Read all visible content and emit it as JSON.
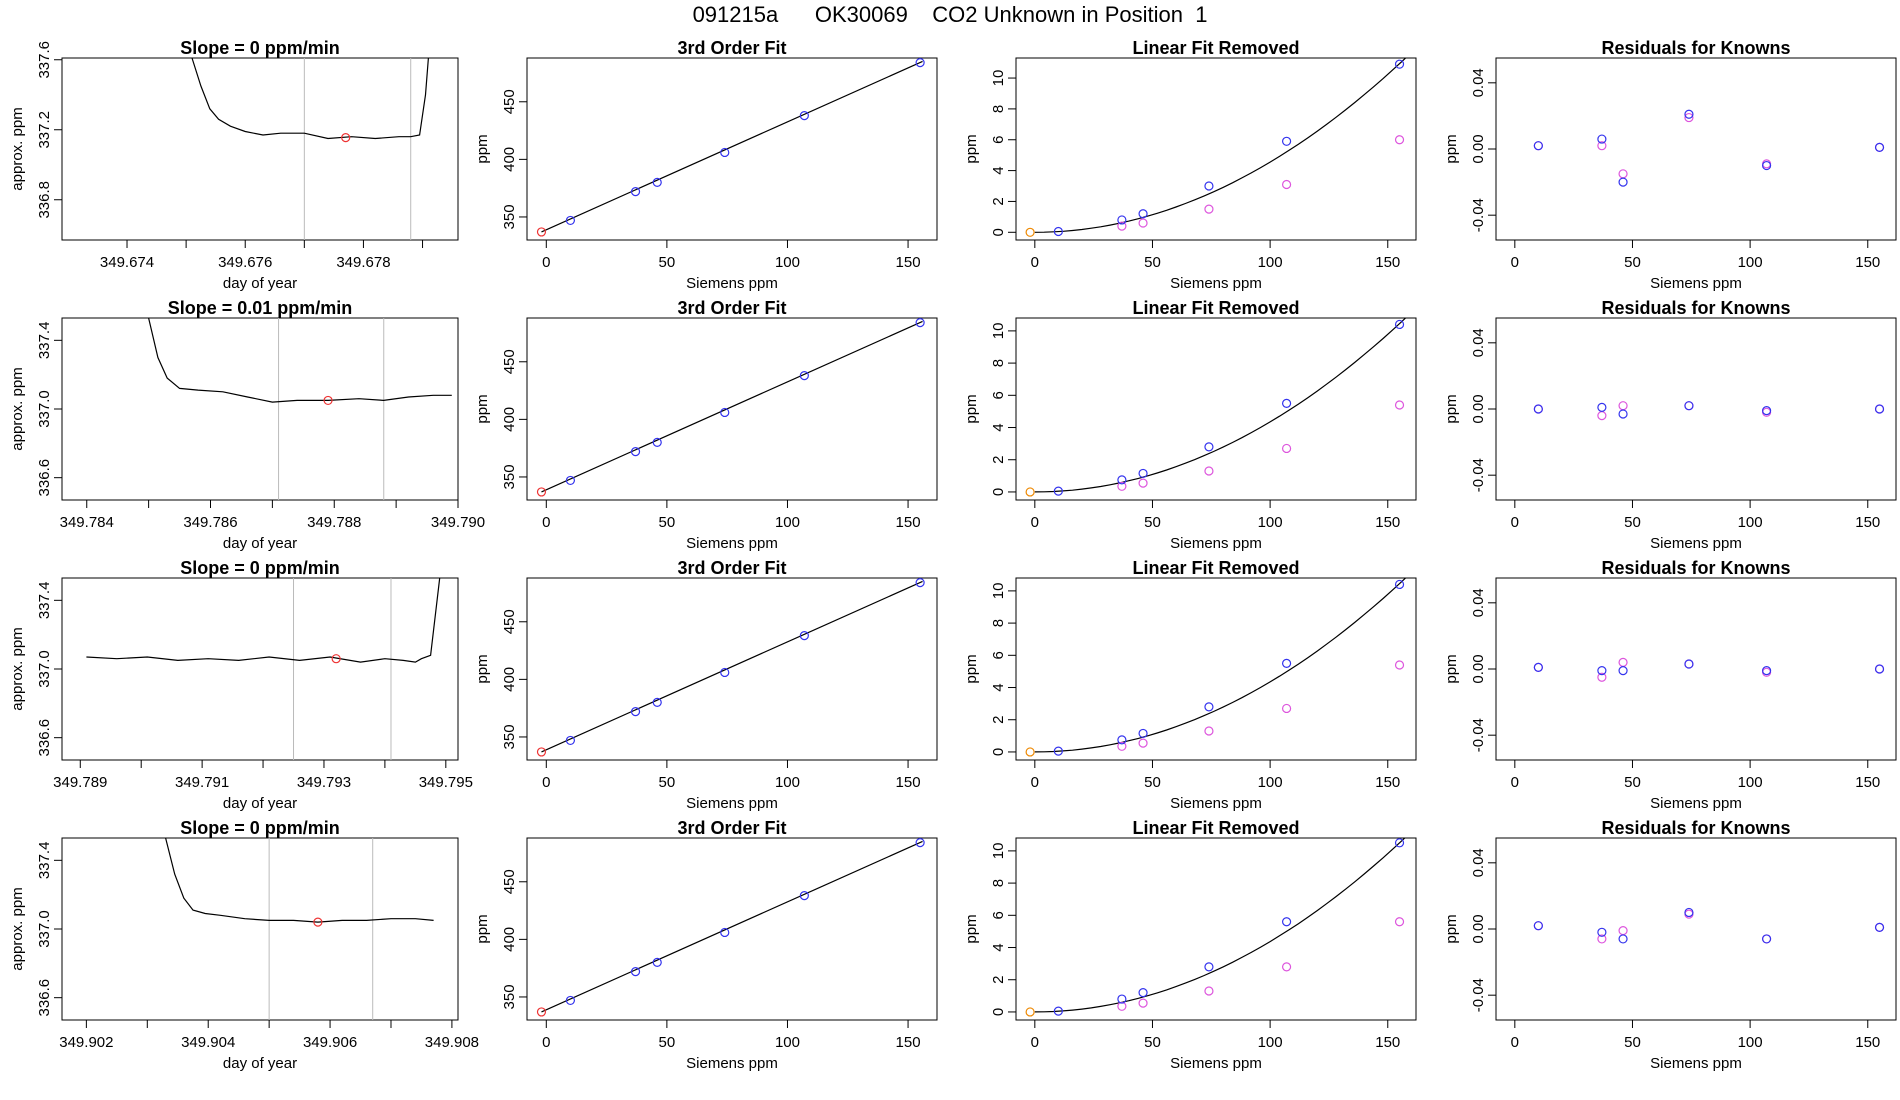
{
  "figure": {
    "title": "091215a      OK30069    CO2 Unknown in Position  1"
  },
  "colors": {
    "line": "#000000",
    "known_point": "#3333ee",
    "linear_removed_point": "#dd55dd",
    "unknown_point": "#ee3333",
    "zero_point": "#ee8800",
    "guide_line": "#bbbbbb",
    "residual_point": "#3333ee"
  },
  "chart_data": [
    {
      "type": "line",
      "row": 0,
      "col": 0,
      "title": "Slope =  0  ppm/min",
      "xlabel": "day of year",
      "ylabel": "approx. ppm",
      "xlim": [
        349.6729,
        349.6796
      ],
      "ylim": [
        336.57,
        337.61
      ],
      "xticks": [
        349.674,
        349.676,
        349.678
      ],
      "xtick_labels": [
        "349.674",
        "349.676",
        "349.678"
      ],
      "xticks_minor": [
        349.675,
        349.677,
        349.679
      ],
      "yticks": [
        336.8,
        337.2,
        337.6
      ],
      "ytick_labels": [
        "336.8",
        "337.2",
        "337.6"
      ],
      "series": [
        {
          "x": [
            349.6751,
            349.67525,
            349.6754,
            349.67555,
            349.67575,
            349.676,
            349.6763,
            349.6766,
            349.677,
            349.6774,
            349.6778,
            349.6782,
            349.6786,
            349.6788,
            349.67895,
            349.67905,
            349.6791
          ],
          "y": [
            337.61,
            337.45,
            337.32,
            337.26,
            337.22,
            337.19,
            337.17,
            337.18,
            337.18,
            337.15,
            337.16,
            337.15,
            337.16,
            337.16,
            337.17,
            337.4,
            337.61
          ]
        }
      ],
      "guides_x": [
        349.677,
        349.6788
      ],
      "point": {
        "x": 349.6777,
        "y": 337.155
      }
    },
    {
      "type": "scatter",
      "row": 0,
      "col": 1,
      "title": "3rd Order Fit",
      "xlabel": "Siemens ppm",
      "ylabel": "ppm",
      "xlim": [
        -8,
        162
      ],
      "ylim": [
        330,
        488
      ],
      "xticks": [
        0,
        50,
        100,
        150
      ],
      "yticks": [
        350,
        400,
        450
      ],
      "fit": {
        "x": [
          -2,
          156
        ],
        "y": [
          337,
          485
        ]
      },
      "unknown": [
        {
          "x": -2,
          "y": 337
        }
      ],
      "knowns": {
        "x": [
          10,
          37,
          46,
          74,
          107,
          155
        ],
        "y": [
          347,
          372,
          380,
          406,
          438,
          484
        ]
      }
    },
    {
      "type": "scatter",
      "row": 0,
      "col": 2,
      "title": "Linear Fit Removed",
      "xlabel": "Siemens ppm",
      "ylabel": "ppm",
      "xlim": [
        -8,
        162
      ],
      "ylim": [
        -0.5,
        11.3
      ],
      "xticks": [
        0,
        50,
        100,
        150
      ],
      "yticks": [
        0,
        2,
        4,
        6,
        8,
        10
      ],
      "fit_curve_k": 0.000455,
      "zero": [
        {
          "x": -2,
          "y": 0
        }
      ],
      "knowns": {
        "x": [
          10,
          37,
          46,
          74,
          107,
          155
        ],
        "y": [
          0.05,
          0.8,
          1.2,
          3.0,
          5.9,
          10.9
        ]
      },
      "linear_removed": {
        "x": [
          37,
          46,
          74,
          107,
          155
        ],
        "y": [
          0.4,
          0.6,
          1.5,
          3.1,
          6.0
        ]
      }
    },
    {
      "type": "scatter",
      "row": 0,
      "col": 3,
      "title": "Residuals for Knowns",
      "xlabel": "Siemens ppm",
      "ylabel": "ppm",
      "xlim": [
        -8,
        162
      ],
      "ylim": [
        -0.055,
        0.055
      ],
      "xticks": [
        0,
        50,
        100,
        150
      ],
      "yticks": [
        -0.04,
        0.0,
        0.04
      ],
      "ytick_labels": [
        "-0.04",
        "0.00",
        "0.04"
      ],
      "series_a": {
        "x": [
          10,
          37,
          46,
          74,
          107,
          155
        ],
        "y": [
          0.002,
          0.006,
          -0.02,
          0.021,
          -0.01,
          0.001
        ]
      },
      "series_b": {
        "x": [
          10,
          37,
          46,
          74,
          107,
          155
        ],
        "y": [
          0.002,
          0.002,
          -0.015,
          0.019,
          -0.009,
          0.001
        ]
      }
    },
    {
      "type": "line",
      "row": 1,
      "col": 0,
      "title": "Slope =  0.01  ppm/min",
      "xlabel": "day of year",
      "ylabel": "approx. ppm",
      "xlim": [
        349.7836,
        349.79
      ],
      "ylim": [
        336.47,
        337.53
      ],
      "xticks": [
        349.784,
        349.786,
        349.788,
        349.79
      ],
      "xtick_labels": [
        "349.784",
        "349.786",
        "349.788",
        "349.790"
      ],
      "xticks_minor": [
        349.785,
        349.787,
        349.789
      ],
      "yticks": [
        336.6,
        337.0,
        337.4
      ],
      "ytick_labels": [
        "336.6",
        "337.0",
        "337.4"
      ],
      "series": [
        {
          "x": [
            349.785,
            349.78515,
            349.7853,
            349.7855,
            349.7858,
            349.7862,
            349.7866,
            349.787,
            349.7874,
            349.7879,
            349.7884,
            349.7888,
            349.7892,
            349.7896,
            349.7899
          ],
          "y": [
            337.53,
            337.3,
            337.18,
            337.12,
            337.11,
            337.1,
            337.07,
            337.04,
            337.05,
            337.05,
            337.06,
            337.05,
            337.07,
            337.08,
            337.08
          ]
        }
      ],
      "guides_x": [
        349.7871,
        349.7888
      ],
      "point": {
        "x": 349.7879,
        "y": 337.05
      }
    },
    {
      "type": "scatter",
      "row": 1,
      "col": 1,
      "title": "3rd Order Fit",
      "xlabel": "Siemens ppm",
      "ylabel": "ppm",
      "xlim": [
        -8,
        162
      ],
      "ylim": [
        330,
        488
      ],
      "xticks": [
        0,
        50,
        100,
        150
      ],
      "yticks": [
        350,
        400,
        450
      ],
      "fit": {
        "x": [
          -2,
          156
        ],
        "y": [
          337,
          485
        ]
      },
      "unknown": [
        {
          "x": -2,
          "y": 337
        }
      ],
      "knowns": {
        "x": [
          10,
          37,
          46,
          74,
          107,
          155
        ],
        "y": [
          347,
          372,
          380,
          406,
          438,
          484
        ]
      }
    },
    {
      "type": "scatter",
      "row": 1,
      "col": 2,
      "title": "Linear Fit Removed",
      "xlabel": "Siemens ppm",
      "ylabel": "ppm",
      "xlim": [
        -8,
        162
      ],
      "ylim": [
        -0.5,
        10.8
      ],
      "xticks": [
        0,
        50,
        100,
        150
      ],
      "yticks": [
        0,
        2,
        4,
        6,
        8,
        10
      ],
      "fit_curve_k": 0.000435,
      "zero": [
        {
          "x": -2,
          "y": 0
        }
      ],
      "knowns": {
        "x": [
          10,
          37,
          46,
          74,
          107,
          155
        ],
        "y": [
          0.05,
          0.75,
          1.15,
          2.8,
          5.5,
          10.4
        ]
      },
      "linear_removed": {
        "x": [
          37,
          46,
          74,
          107,
          155
        ],
        "y": [
          0.35,
          0.55,
          1.3,
          2.7,
          5.4
        ]
      }
    },
    {
      "type": "scatter",
      "row": 1,
      "col": 3,
      "title": "Residuals for Knowns",
      "xlabel": "Siemens ppm",
      "ylabel": "ppm",
      "xlim": [
        -8,
        162
      ],
      "ylim": [
        -0.055,
        0.055
      ],
      "xticks": [
        0,
        50,
        100,
        150
      ],
      "yticks": [
        -0.04,
        0.0,
        0.04
      ],
      "ytick_labels": [
        "-0.04",
        "0.00",
        "0.04"
      ],
      "series_a": {
        "x": [
          10,
          37,
          46,
          74,
          107,
          155
        ],
        "y": [
          0.0,
          0.001,
          -0.003,
          0.002,
          -0.001,
          0.0
        ]
      },
      "series_b": {
        "x": [
          10,
          37,
          46,
          74,
          107,
          155
        ],
        "y": [
          0.0,
          -0.004,
          0.002,
          0.002,
          -0.002,
          0.0
        ]
      }
    },
    {
      "type": "line",
      "row": 2,
      "col": 0,
      "title": "Slope =  0  ppm/min",
      "xlabel": "day of year",
      "ylabel": "approx. ppm",
      "xlim": [
        349.7887,
        349.7952
      ],
      "ylim": [
        336.47,
        337.53
      ],
      "xticks": [
        349.789,
        349.791,
        349.793,
        349.795
      ],
      "xtick_labels": [
        "349.789",
        "349.791",
        "349.793",
        "349.795"
      ],
      "xticks_minor": [
        349.79,
        349.792,
        349.794
      ],
      "yticks": [
        336.6,
        337.0,
        337.4
      ],
      "ytick_labels": [
        "336.6",
        "337.0",
        "337.4"
      ],
      "series": [
        {
          "x": [
            349.7891,
            349.7896,
            349.7901,
            349.7906,
            349.7911,
            349.7916,
            349.7921,
            349.7926,
            349.7931,
            349.7936,
            349.794,
            349.7943,
            349.7945,
            349.7946,
            349.79475,
            349.7949
          ],
          "y": [
            337.07,
            337.06,
            337.07,
            337.05,
            337.06,
            337.05,
            337.07,
            337.05,
            337.07,
            337.04,
            337.06,
            337.05,
            337.04,
            337.06,
            337.08,
            337.53
          ]
        }
      ],
      "guides_x": [
        349.7925,
        349.7941
      ],
      "point": {
        "x": 349.7932,
        "y": 337.06
      }
    },
    {
      "type": "scatter",
      "row": 2,
      "col": 1,
      "title": "3rd Order Fit",
      "xlabel": "Siemens ppm",
      "ylabel": "ppm",
      "xlim": [
        -8,
        162
      ],
      "ylim": [
        330,
        488
      ],
      "xticks": [
        0,
        50,
        100,
        150
      ],
      "yticks": [
        350,
        400,
        450
      ],
      "fit": {
        "x": [
          -2,
          156
        ],
        "y": [
          337,
          485
        ]
      },
      "unknown": [
        {
          "x": -2,
          "y": 337
        }
      ],
      "knowns": {
        "x": [
          10,
          37,
          46,
          74,
          107,
          155
        ],
        "y": [
          347,
          372,
          380,
          406,
          438,
          484
        ]
      }
    },
    {
      "type": "scatter",
      "row": 2,
      "col": 2,
      "title": "Linear Fit Removed",
      "xlabel": "Siemens ppm",
      "ylabel": "ppm",
      "xlim": [
        -8,
        162
      ],
      "ylim": [
        -0.5,
        10.8
      ],
      "xticks": [
        0,
        50,
        100,
        150
      ],
      "yticks": [
        0,
        2,
        4,
        6,
        8,
        10
      ],
      "fit_curve_k": 0.000435,
      "zero": [
        {
          "x": -2,
          "y": 0
        }
      ],
      "knowns": {
        "x": [
          10,
          37,
          46,
          74,
          107,
          155
        ],
        "y": [
          0.05,
          0.75,
          1.15,
          2.8,
          5.5,
          10.4
        ]
      },
      "linear_removed": {
        "x": [
          37,
          46,
          74,
          107,
          155
        ],
        "y": [
          0.35,
          0.55,
          1.3,
          2.7,
          5.4
        ]
      }
    },
    {
      "type": "scatter",
      "row": 2,
      "col": 3,
      "title": "Residuals for Knowns",
      "xlabel": "Siemens ppm",
      "ylabel": "ppm",
      "xlim": [
        -8,
        162
      ],
      "ylim": [
        -0.055,
        0.055
      ],
      "xticks": [
        0,
        50,
        100,
        150
      ],
      "yticks": [
        -0.04,
        0.0,
        0.04
      ],
      "ytick_labels": [
        "-0.04",
        "0.00",
        "0.04"
      ],
      "series_a": {
        "x": [
          10,
          37,
          46,
          74,
          107,
          155
        ],
        "y": [
          0.001,
          -0.001,
          -0.001,
          0.003,
          -0.001,
          0.0
        ]
      },
      "series_b": {
        "x": [
          10,
          37,
          46,
          74,
          107,
          155
        ],
        "y": [
          0.001,
          -0.005,
          0.004,
          0.003,
          -0.002,
          0.0
        ]
      }
    },
    {
      "type": "line",
      "row": 3,
      "col": 0,
      "title": "Slope =  0  ppm/min",
      "xlabel": "day of year",
      "ylabel": "approx. ppm",
      "xlim": [
        349.9016,
        349.9081
      ],
      "ylim": [
        336.47,
        337.53
      ],
      "xticks": [
        349.902,
        349.904,
        349.906,
        349.908
      ],
      "xtick_labels": [
        "349.902",
        "349.904",
        "349.906",
        "349.908"
      ],
      "xticks_minor": [
        349.903,
        349.905,
        349.907
      ],
      "yticks": [
        336.6,
        337.0,
        337.4
      ],
      "ytick_labels": [
        "336.6",
        "337.0",
        "337.4"
      ],
      "series": [
        {
          "x": [
            349.9033,
            349.90345,
            349.9036,
            349.90375,
            349.90395,
            349.9042,
            349.9046,
            349.905,
            349.9054,
            349.9058,
            349.9062,
            349.9066,
            349.907,
            349.9074,
            349.9077
          ],
          "y": [
            337.53,
            337.32,
            337.18,
            337.11,
            337.09,
            337.08,
            337.06,
            337.05,
            337.05,
            337.04,
            337.05,
            337.05,
            337.06,
            337.06,
            337.05
          ]
        }
      ],
      "guides_x": [
        349.905,
        349.9067
      ],
      "point": {
        "x": 349.9058,
        "y": 337.04
      }
    },
    {
      "type": "scatter",
      "row": 3,
      "col": 1,
      "title": "3rd Order Fit",
      "xlabel": "Siemens ppm",
      "ylabel": "ppm",
      "xlim": [
        -8,
        162
      ],
      "ylim": [
        330,
        488
      ],
      "xticks": [
        0,
        50,
        100,
        150
      ],
      "yticks": [
        350,
        400,
        450
      ],
      "fit": {
        "x": [
          -2,
          156
        ],
        "y": [
          337,
          485
        ]
      },
      "unknown": [
        {
          "x": -2,
          "y": 337
        }
      ],
      "knowns": {
        "x": [
          10,
          37,
          46,
          74,
          107,
          155
        ],
        "y": [
          347,
          372,
          380,
          406,
          438,
          484
        ]
      }
    },
    {
      "type": "scatter",
      "row": 3,
      "col": 2,
      "title": "Linear Fit Removed",
      "xlabel": "Siemens ppm",
      "ylabel": "ppm",
      "xlim": [
        -8,
        162
      ],
      "ylim": [
        -0.5,
        10.8
      ],
      "xticks": [
        0,
        50,
        100,
        150
      ],
      "yticks": [
        0,
        2,
        4,
        6,
        8,
        10
      ],
      "fit_curve_k": 0.000437,
      "zero": [
        {
          "x": -2,
          "y": 0
        }
      ],
      "knowns": {
        "x": [
          10,
          37,
          46,
          74,
          107,
          155
        ],
        "y": [
          0.05,
          0.8,
          1.2,
          2.8,
          5.6,
          10.5
        ]
      },
      "linear_removed": {
        "x": [
          37,
          46,
          74,
          107,
          155
        ],
        "y": [
          0.35,
          0.55,
          1.3,
          2.8,
          5.6
        ]
      }
    },
    {
      "type": "scatter",
      "row": 3,
      "col": 3,
      "title": "Residuals for Knowns",
      "xlabel": "Siemens ppm",
      "ylabel": "ppm",
      "xlim": [
        -8,
        162
      ],
      "ylim": [
        -0.055,
        0.055
      ],
      "xticks": [
        0,
        50,
        100,
        150
      ],
      "yticks": [
        -0.04,
        0.0,
        0.04
      ],
      "ytick_labels": [
        "-0.04",
        "0.00",
        "0.04"
      ],
      "series_a": {
        "x": [
          10,
          37,
          46,
          74,
          107,
          155
        ],
        "y": [
          0.002,
          -0.002,
          -0.006,
          0.01,
          -0.006,
          0.001
        ]
      },
      "series_b": {
        "x": [
          10,
          37,
          46,
          74,
          107,
          155
        ],
        "y": [
          0.002,
          -0.006,
          -0.001,
          0.009,
          -0.006,
          0.001
        ]
      }
    }
  ]
}
